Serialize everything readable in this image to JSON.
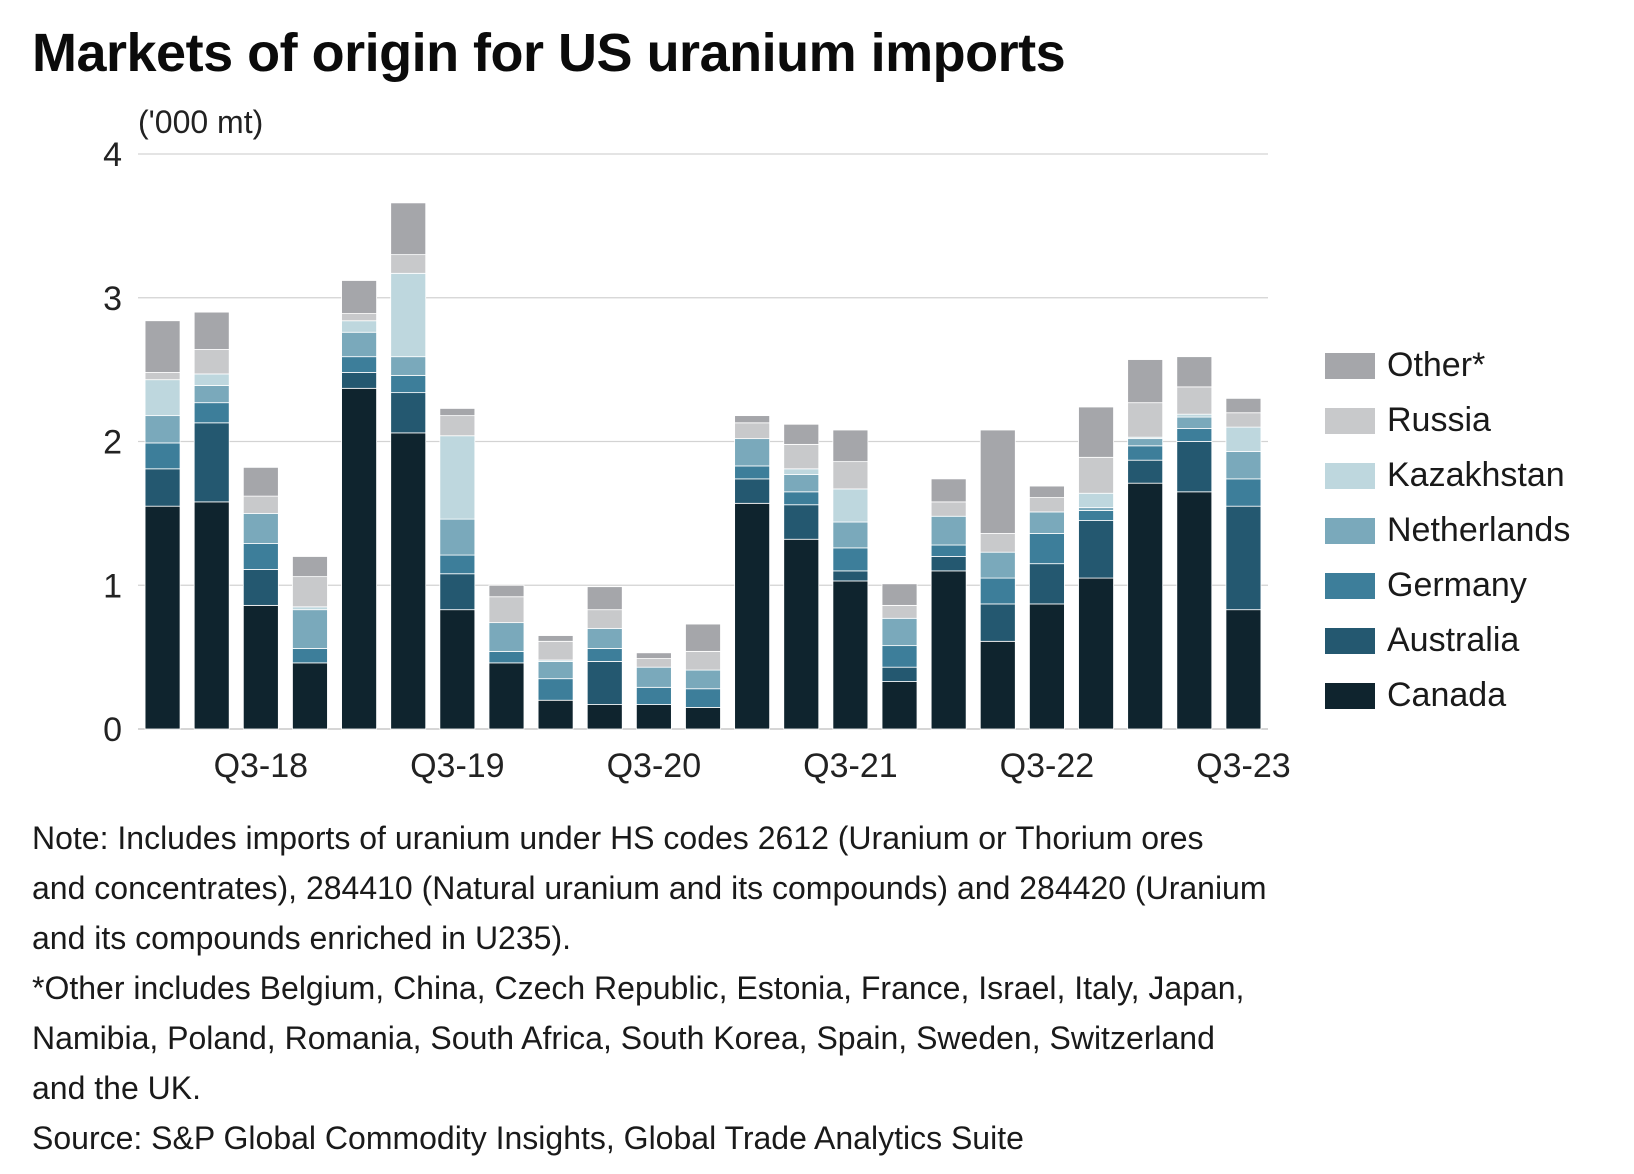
{
  "chart_data": {
    "type": "bar",
    "stacked": true,
    "title": "Markets of origin for US uranium imports",
    "ylabel": "('000 mt)",
    "ylim": [
      0,
      4
    ],
    "yticks": [
      "0",
      "1",
      "2",
      "3",
      "4"
    ],
    "grid": true,
    "categories": [
      "Q1-18",
      "Q2-18",
      "Q3-18",
      "Q4-18",
      "Q1-19",
      "Q2-19",
      "Q3-19",
      "Q4-19",
      "Q1-20",
      "Q2-20",
      "Q3-20",
      "Q4-20",
      "Q1-21",
      "Q2-21",
      "Q3-21",
      "Q4-21",
      "Q1-22",
      "Q2-22",
      "Q3-22",
      "Q4-22",
      "Q1-23",
      "Q2-23",
      "Q3-23"
    ],
    "xtick_labels": [
      {
        "index": 2.5,
        "label": "Q3-18"
      },
      {
        "index": 6.5,
        "label": "Q3-19"
      },
      {
        "index": 10.5,
        "label": "Q3-20"
      },
      {
        "index": 14.5,
        "label": "Q3-21"
      },
      {
        "index": 18.5,
        "label": "Q3-22"
      },
      {
        "index": 22.5,
        "label": "Q3-23"
      }
    ],
    "series": [
      {
        "name": "Canada",
        "color": "#0f242e",
        "values": [
          1.55,
          1.58,
          0.86,
          0.46,
          2.37,
          2.06,
          0.83,
          0.46,
          0.2,
          0.17,
          0.17,
          0.15,
          1.57,
          1.32,
          1.03,
          0.33,
          1.1,
          0.61,
          0.87,
          1.05,
          1.71,
          1.65,
          0.83
        ]
      },
      {
        "name": "Australia",
        "color": "#245870",
        "values": [
          0.26,
          0.55,
          0.25,
          0.0,
          0.11,
          0.28,
          0.25,
          0.0,
          0.0,
          0.3,
          0.0,
          0.0,
          0.17,
          0.24,
          0.07,
          0.1,
          0.1,
          0.26,
          0.28,
          0.4,
          0.16,
          0.35,
          0.72
        ]
      },
      {
        "name": "Germany",
        "color": "#3d7e9a",
        "values": [
          0.18,
          0.14,
          0.18,
          0.1,
          0.11,
          0.12,
          0.13,
          0.08,
          0.15,
          0.09,
          0.12,
          0.13,
          0.09,
          0.09,
          0.16,
          0.15,
          0.08,
          0.18,
          0.21,
          0.07,
          0.1,
          0.09,
          0.19
        ]
      },
      {
        "name": "Netherlands",
        "color": "#7aa9bb",
        "values": [
          0.19,
          0.12,
          0.21,
          0.27,
          0.17,
          0.13,
          0.25,
          0.2,
          0.12,
          0.14,
          0.14,
          0.13,
          0.19,
          0.12,
          0.18,
          0.19,
          0.2,
          0.18,
          0.15,
          0.02,
          0.05,
          0.08,
          0.19
        ]
      },
      {
        "name": "Kazakhstan",
        "color": "#bed7de",
        "values": [
          0.25,
          0.08,
          0.0,
          0.02,
          0.08,
          0.58,
          0.58,
          0.0,
          0.01,
          0.0,
          0.0,
          0.0,
          0.0,
          0.04,
          0.23,
          0.0,
          0.0,
          0.0,
          0.0,
          0.1,
          0.01,
          0.02,
          0.17
        ]
      },
      {
        "name": "Russia",
        "color": "#c8c9cb",
        "values": [
          0.05,
          0.17,
          0.12,
          0.21,
          0.05,
          0.13,
          0.14,
          0.18,
          0.13,
          0.13,
          0.06,
          0.13,
          0.11,
          0.17,
          0.19,
          0.09,
          0.1,
          0.13,
          0.1,
          0.25,
          0.24,
          0.19,
          0.1
        ]
      },
      {
        "name": "Other*",
        "color": "#a5a6aa",
        "values": [
          0.36,
          0.26,
          0.2,
          0.14,
          0.23,
          0.36,
          0.05,
          0.08,
          0.04,
          0.16,
          0.04,
          0.19,
          0.05,
          0.14,
          0.22,
          0.15,
          0.16,
          0.72,
          0.08,
          0.35,
          0.3,
          0.21,
          0.1
        ]
      }
    ]
  },
  "notes": [
    "Note: Includes imports of uranium under HS codes 2612 (Uranium or Thorium ores",
    "and concentrates), 284410 (Natural uranium and its compounds) and 284420 (Uranium",
    "and its compounds enriched in U235).",
    "*Other includes Belgium, China, Czech Republic, Estonia, France, Israel, Italy, Japan,",
    "Namibia, Poland, Romania, South Africa, South Korea, Spain, Sweden, Switzerland",
    "and the UK.",
    "Source: S&P Global Commodity Insights, Global Trade Analytics Suite"
  ]
}
